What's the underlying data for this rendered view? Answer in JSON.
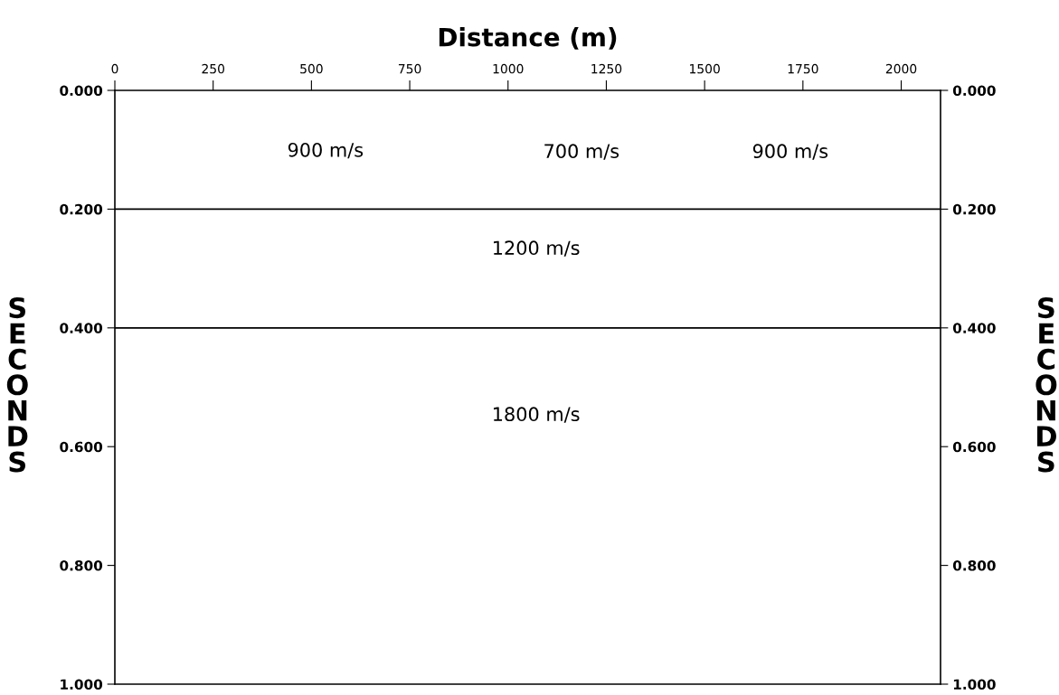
{
  "chart_data": {
    "type": "line",
    "x": [
      0,
      2100
    ],
    "series": [
      {
        "color": "#000000",
        "values": [
          0.2,
          0.2
        ]
      },
      {
        "color": "#000000",
        "values": [
          0.4,
          0.4
        ]
      }
    ],
    "marker": "none",
    "line_style": "solid",
    "xlabel": "Distance (m)",
    "ylabel": "SECONDS",
    "y2label": "SECONDS",
    "xlim": [
      0,
      2100
    ],
    "xticks": [
      0,
      250,
      500,
      750,
      1000,
      1250,
      1500,
      1750,
      2000
    ],
    "ylim": [
      1.0,
      0.0
    ],
    "yticks": [
      {
        "value": 0,
        "label": "0.000"
      },
      {
        "value": 0.2,
        "label": "0.200"
      },
      {
        "value": 0.4,
        "label": "0.400"
      },
      {
        "value": 0.6,
        "label": "0.600"
      },
      {
        "value": 0.8,
        "label": "0.800"
      },
      {
        "value": 1.0,
        "label": "1.000"
      }
    ],
    "y2lim": [
      1.0,
      0.0
    ],
    "y2ticks": [
      {
        "value": 0,
        "label": "0.000"
      },
      {
        "value": 0.2,
        "label": "0.200"
      },
      {
        "value": 0.4,
        "label": "0.400"
      },
      {
        "value": 0.6,
        "label": "0.600"
      },
      {
        "value": 0.8,
        "label": "0.800"
      },
      {
        "value": 1.0,
        "label": "1.000"
      }
    ],
    "annotations": [
      "900 m/s",
      "700 m/s",
      "900 m/s",
      "1200 m/s",
      "1800 m/s"
    ]
  }
}
